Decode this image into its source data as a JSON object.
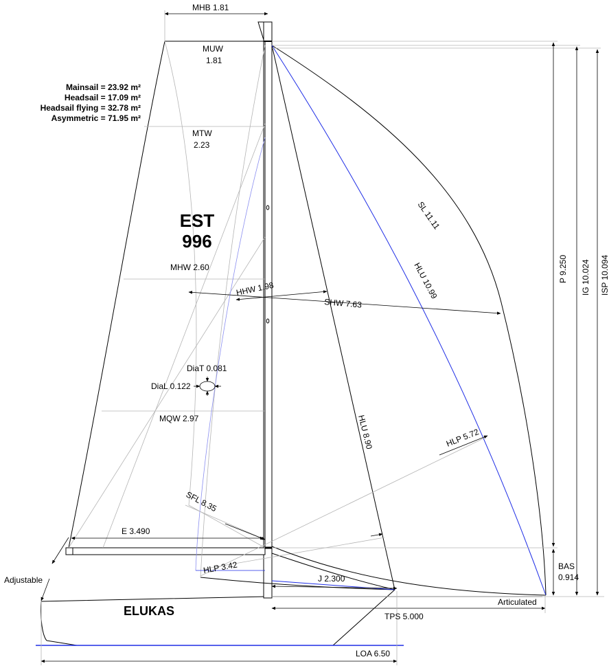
{
  "boat_name": "ELUKAS",
  "sail_number": [
    "EST",
    "996"
  ],
  "sail_areas": [
    "Mainsail = 23.92 m²",
    "Headsail = 17.09 m²",
    "Headsail flying = 32.78 m²",
    "Asymmetric = 71.95 m²"
  ],
  "measurements": {
    "mhb": "MHB 1.81",
    "muw": [
      "MUW",
      "1.81"
    ],
    "mtw": [
      "MTW",
      "2.23"
    ],
    "mhw": "MHW 2.60",
    "hhw": "HHW 1.98",
    "shw": "SHW 7.63",
    "sl": "SL 11.11",
    "hlu_asym": "HLU 10.99",
    "hlu_jib": "HLU 8.90",
    "hlp_asym": "HLP 5.72",
    "hlp_jib": "HLP 3.42",
    "mqw": "MQW 2.97",
    "sfl": "SFL 8.35",
    "diat": "DiaT 0.081",
    "dial": "DiaL 0.122",
    "e": "E 3.490",
    "j": "J 2.300",
    "tps": "TPS 5.000",
    "loa": "LOA 6.50",
    "p": "P 9.250",
    "ig": "IG 10.024",
    "isp": "ISP 10.094",
    "bas": [
      "BAS",
      "0.914"
    ]
  },
  "notes": {
    "adjustable": "Adjustable",
    "articulated": "Articulated"
  },
  "colors": {
    "line": "#000000",
    "thin": "#b4b4b4",
    "blue": "#1f2ee6",
    "light_blue": "#8a8ef0"
  }
}
